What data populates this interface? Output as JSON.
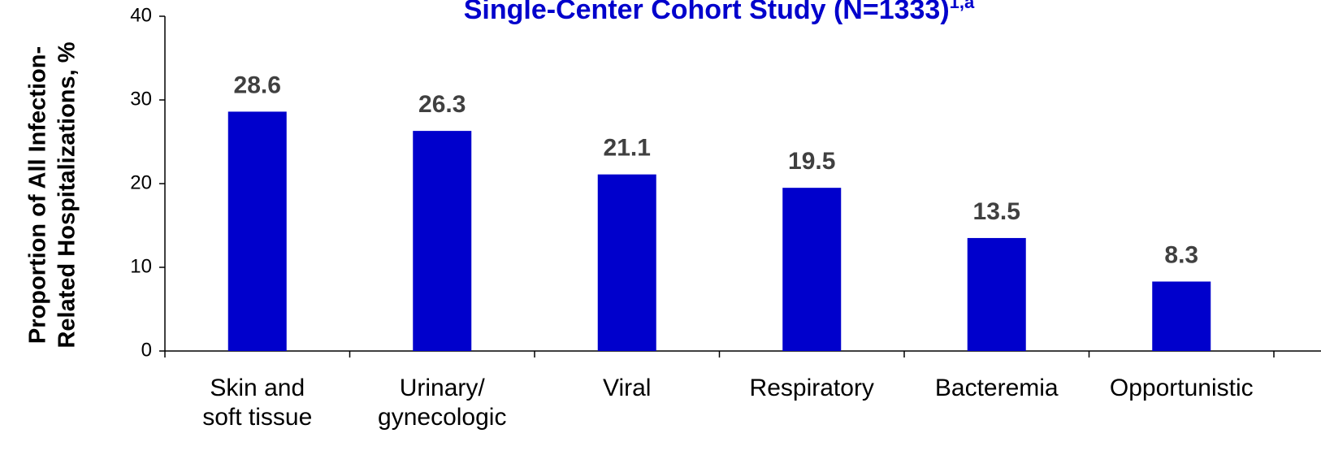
{
  "chart_data": {
    "type": "bar",
    "title": "Single-Center Cohort Study (N=1333)",
    "title_superscript": "1,a",
    "y_label": [
      "Proportion of All Infection-",
      "Related Hospitalizations, %"
    ],
    "categories": [
      "Skin and\nsoft tissue",
      "Urinary/\ngynecologic",
      "Viral",
      "Respiratory",
      "Bacteremia",
      "Opportunistic"
    ],
    "values": [
      28.6,
      26.3,
      21.1,
      19.5,
      13.5,
      8.3
    ],
    "color": "#0000cc",
    "ylim": [
      0,
      40
    ],
    "yticks": [
      0,
      10,
      20,
      30,
      40
    ],
    "grid": false
  }
}
